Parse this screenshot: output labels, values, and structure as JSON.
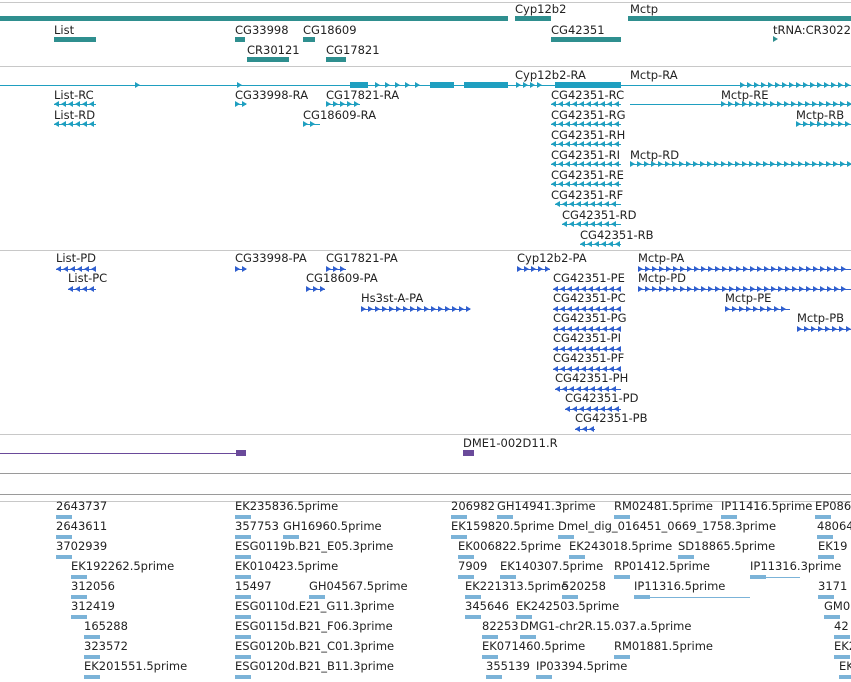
{
  "colors": {
    "gene": "#2f8f8f",
    "transcript": "#1f9fc0",
    "protein": "#2f5fcf",
    "probe": "#6a4a9a",
    "est": "#7bb3d8"
  },
  "genes": [
    {
      "label": "Cyp12b2"
    },
    {
      "label": "Mctp"
    },
    {
      "label": "List"
    },
    {
      "label": "CG33998"
    },
    {
      "label": "CG18609"
    },
    {
      "label": "CG42351"
    },
    {
      "label": "tRNA:CR3022"
    },
    {
      "label": "CR30121"
    },
    {
      "label": "CG17821"
    }
  ],
  "transcripts": [
    {
      "label": "Cyp12b2-RA"
    },
    {
      "label": "Mctp-RA"
    },
    {
      "label": "List-RC"
    },
    {
      "label": "CG33998-RA"
    },
    {
      "label": "CG17821-RA"
    },
    {
      "label": "CG42351-RC"
    },
    {
      "label": "Mctp-RE"
    },
    {
      "label": "List-RD"
    },
    {
      "label": "CG18609-RA"
    },
    {
      "label": "CG42351-RG"
    },
    {
      "label": "Mctp-RB"
    },
    {
      "label": "CG42351-RH"
    },
    {
      "label": "CG42351-RI"
    },
    {
      "label": "Mctp-RD"
    },
    {
      "label": "CG42351-RE"
    },
    {
      "label": "CG42351-RF"
    },
    {
      "label": "CG42351-RD"
    },
    {
      "label": "CG42351-RB"
    }
  ],
  "proteins": [
    {
      "label": "List-PD"
    },
    {
      "label": "CG33998-PA"
    },
    {
      "label": "CG17821-PA"
    },
    {
      "label": "Cyp12b2-PA"
    },
    {
      "label": "Mctp-PA"
    },
    {
      "label": "List-PC"
    },
    {
      "label": "CG18609-PA"
    },
    {
      "label": "CG42351-PE"
    },
    {
      "label": "Mctp-PD"
    },
    {
      "label": "Hs3st-A-PA"
    },
    {
      "label": "CG42351-PC"
    },
    {
      "label": "Mctp-PE"
    },
    {
      "label": "CG42351-PG"
    },
    {
      "label": "Mctp-PB"
    },
    {
      "label": "CG42351-PI"
    },
    {
      "label": "CG42351-PF"
    },
    {
      "label": "CG42351-PH"
    },
    {
      "label": "CG42351-PD"
    },
    {
      "label": "CG42351-PB"
    }
  ],
  "probes": [
    {
      "label": "DME1-002D11.R"
    }
  ],
  "ests": [
    {
      "label": "2643737"
    },
    {
      "label": "EK235836.5prime"
    },
    {
      "label": "206982"
    },
    {
      "label": "GH14941.3prime"
    },
    {
      "label": "RM02481.5prime"
    },
    {
      "label": "IP11416.5prime"
    },
    {
      "label": "EP086"
    },
    {
      "label": "2643611"
    },
    {
      "label": "357753"
    },
    {
      "label": "GH16960.5prime"
    },
    {
      "label": "EK159820.5prime"
    },
    {
      "label": "Dmel_dig_016451_0669_1758.3prime"
    },
    {
      "label": "48064"
    },
    {
      "label": "3702939"
    },
    {
      "label": "ESG0119b.B21_E05.3prime"
    },
    {
      "label": "EK006822.5prime"
    },
    {
      "label": "EK243018.5prime"
    },
    {
      "label": "SD18865.5prime"
    },
    {
      "label": "EK19"
    },
    {
      "label": "EK192262.5prime"
    },
    {
      "label": "EK010423.5prime"
    },
    {
      "label": "7909"
    },
    {
      "label": "EK140307.5prime"
    },
    {
      "label": "RP01412.5prime"
    },
    {
      "label": "IP11316.3prime"
    },
    {
      "label": "312056"
    },
    {
      "label": "15497"
    },
    {
      "label": "GH04567.5prime"
    },
    {
      "label": "EK221313.5prime"
    },
    {
      "label": "520258"
    },
    {
      "label": "IP11316.5prime"
    },
    {
      "label": "3171"
    },
    {
      "label": "312419"
    },
    {
      "label": "ESG0110d.E21_G11.3prime"
    },
    {
      "label": "345646"
    },
    {
      "label": "EK242503.5prime"
    },
    {
      "label": "GM0"
    },
    {
      "label": "165288"
    },
    {
      "label": "ESG0115d.B21_F06.3prime"
    },
    {
      "label": "82253"
    },
    {
      "label": "DMG1-chr2R.15.037.a.5prime"
    },
    {
      "label": "42"
    },
    {
      "label": "323572"
    },
    {
      "label": "ESG0120b.B21_C01.3prime"
    },
    {
      "label": "EK071460.5prime"
    },
    {
      "label": "RM01881.5prime"
    },
    {
      "label": "EK2"
    },
    {
      "label": "EK201551.5prime"
    },
    {
      "label": "ESG0120d.B21_B11.3prime"
    },
    {
      "label": "355139"
    },
    {
      "label": "IP03394.5prime"
    },
    {
      "label": "EK"
    }
  ]
}
